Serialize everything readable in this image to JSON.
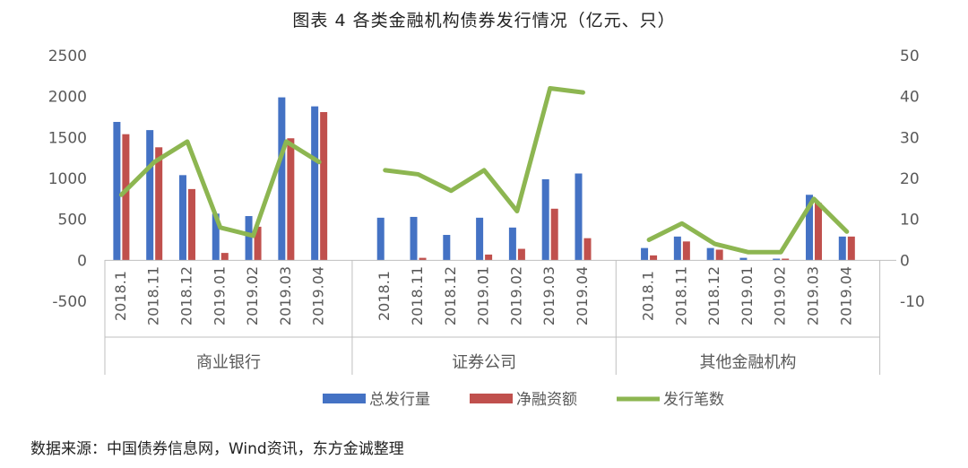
{
  "chart_data": {
    "type": "bar",
    "title": "图表 4   各类金融机构债券发行情况（亿元、只）",
    "groups": [
      {
        "name": "商业银行",
        "categories": [
          "2018.1",
          "2018.11",
          "2018.12",
          "2019.01",
          "2019.02",
          "2019.03",
          "2019.04"
        ]
      },
      {
        "name": "证券公司",
        "categories": [
          "2018.1",
          "2018.11",
          "2018.12",
          "2019.01",
          "2019.02",
          "2019.03",
          "2019.04"
        ]
      },
      {
        "name": "其他金融机构",
        "categories": [
          "2018.1",
          "2018.11",
          "2018.12",
          "2019.01",
          "2019.02",
          "2019.03",
          "2019.04"
        ]
      }
    ],
    "series": [
      {
        "name": "总发行量",
        "axis": "left",
        "kind": "bar",
        "color": "#4472C4",
        "values": [
          [
            1690,
            1590,
            1040,
            570,
            540,
            1990,
            1880
          ],
          [
            520,
            530,
            310,
            520,
            400,
            990,
            1060
          ],
          [
            150,
            290,
            150,
            30,
            20,
            800,
            290
          ]
        ]
      },
      {
        "name": "净融资额",
        "axis": "left",
        "kind": "bar",
        "color": "#C0504D",
        "values": [
          [
            1540,
            1380,
            870,
            90,
            410,
            1490,
            1810
          ],
          [
            0,
            30,
            0,
            70,
            140,
            630,
            270
          ],
          [
            60,
            230,
            130,
            0,
            20,
            700,
            290
          ]
        ]
      },
      {
        "name": "发行笔数",
        "axis": "right",
        "kind": "line",
        "color": "#8DB651",
        "values": [
          [
            16,
            24,
            29,
            8,
            6,
            29,
            24
          ],
          [
            22,
            21,
            17,
            22,
            12,
            42,
            41
          ],
          [
            5,
            9,
            4,
            2,
            2,
            15,
            7
          ]
        ]
      }
    ],
    "y_left": {
      "min": -500,
      "max": 2500,
      "ticks": [
        "2500",
        "2000",
        "1500",
        "1000",
        "500",
        "0",
        "-500"
      ]
    },
    "y_right": {
      "min": -10,
      "max": 50,
      "ticks": [
        "50",
        "40",
        "30",
        "20",
        "10",
        "0",
        "-10"
      ]
    },
    "legend_position": "bottom",
    "grid": false
  },
  "source_text": "数据来源：中国债券信息网，Wind资讯，东方金诚整理"
}
